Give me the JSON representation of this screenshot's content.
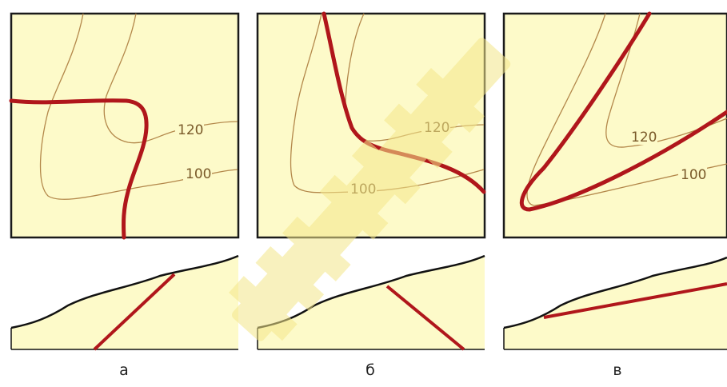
{
  "colors": {
    "background": "#fdfac9",
    "frame": "#1a1a1a",
    "contour": "#b3874a",
    "contour_text": "#7a5a2a",
    "layer_trace": "#b0161b",
    "terrain_line": "#111111",
    "watermark": "#f4e78a"
  },
  "panels": [
    {
      "label": "а",
      "contours": [
        "120",
        "100"
      ]
    },
    {
      "label": "б",
      "contours": [
        "120",
        "100"
      ]
    },
    {
      "label": "в",
      "contours": [
        "120",
        "100"
      ]
    }
  ]
}
